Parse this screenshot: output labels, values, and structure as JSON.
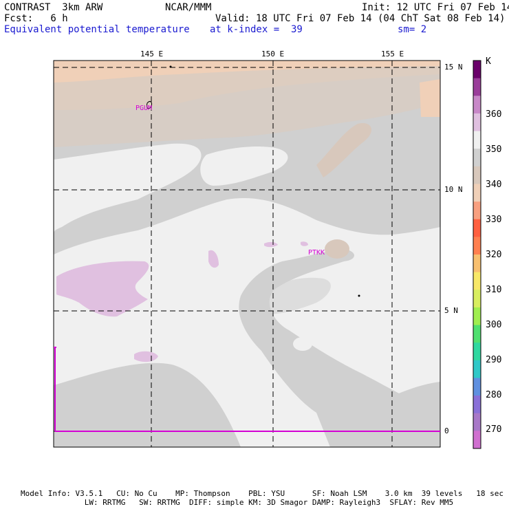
{
  "header": {
    "left_line1": "CONTRAST  3km ARW",
    "left_line2": "Fcst:   6 h",
    "center_line1": "NCAR/MMM",
    "init": "Init: 12 UTC Fri 07 Feb 14",
    "valid": "Valid: 18 UTC Fri 07 Feb 14 (04 ChT Sat 08 Feb 14)",
    "field": "Equivalent potential temperature",
    "level": "at k-index =  39",
    "smoothing": "sm= 2"
  },
  "axes": {
    "lon_labels": [
      "145 E",
      "150 E",
      "155 E"
    ],
    "lat_labels": [
      "15 N",
      "10 N",
      "5 N",
      "0"
    ]
  },
  "stations": [
    "PGUM",
    "PTKK"
  ],
  "legend": {
    "unit": "K",
    "labels": [
      "360",
      "350",
      "340",
      "330",
      "320",
      "310",
      "300",
      "290",
      "280",
      "270"
    ],
    "colors": [
      "#6a006a",
      "#9a3d9a",
      "#c888c8",
      "#e0c0e0",
      "#f0f0f0",
      "#d0d0d0",
      "#d8c8bc",
      "#f0d0b8",
      "#f8a080",
      "#ff6040",
      "#ff8050",
      "#f8c070",
      "#f8e868",
      "#d8ee60",
      "#a0ee50",
      "#50e070",
      "#30d8a0",
      "#30c8c8",
      "#6090e0",
      "#8a70d8",
      "#a878c8",
      "#d070d0"
    ]
  },
  "footer": {
    "line1": "Model Info: V3.5.1   CU: No Cu    MP: Thompson    PBL: YSU      SF: Noah LSM    3.0 km  39 levels   18 sec",
    "line2": "              LW: RRTMG   SW: RRTMG  DIFF: simple KM: 3D Smagor DAMP: Rayleigh3  SFLAY: Rev MM5"
  }
}
